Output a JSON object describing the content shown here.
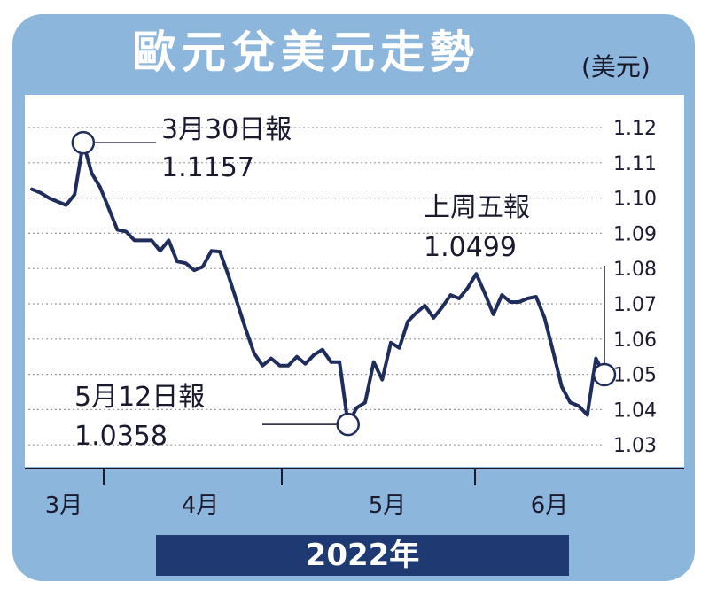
{
  "chart_data": {
    "type": "line",
    "title": "歐元兌美元走勢",
    "unit": "(美元)",
    "year_label": "2022年",
    "ylim": [
      1.025,
      1.13
    ],
    "yticks": [
      "1.12",
      "1.11",
      "1.10",
      "1.09",
      "1.08",
      "1.07",
      "1.06",
      "1.05",
      "1.04",
      "1.03"
    ],
    "ytick_values": [
      1.12,
      1.11,
      1.1,
      1.09,
      1.08,
      1.07,
      1.06,
      1.05,
      1.04,
      1.03
    ],
    "months": [
      "3月",
      "4月",
      "5月",
      "6月"
    ],
    "grid": true,
    "colors": {
      "line": "#1f2d5c",
      "frame": "#8db6dc",
      "year_bar": "#1f3a73"
    },
    "series": [
      {
        "values": [
          1.1025,
          1.1015,
          1.1,
          1.099,
          1.098,
          1.101,
          1.1157,
          1.107,
          1.103,
          1.097,
          1.091,
          1.0905,
          1.088,
          1.088,
          1.088,
          1.085,
          1.088,
          1.082,
          1.0815,
          1.0795,
          1.0805,
          1.085,
          1.0848,
          1.078,
          1.0705,
          1.063,
          1.056,
          1.0525,
          1.0545,
          1.0525,
          1.0525,
          1.055,
          1.053,
          1.0555,
          1.057,
          1.0535,
          1.0535,
          1.0358,
          1.0405,
          1.042,
          1.0535,
          1.0485,
          1.059,
          1.0575,
          1.065,
          1.0675,
          1.0695,
          1.066,
          1.069,
          1.0725,
          1.0715,
          1.0745,
          1.0785,
          1.073,
          1.067,
          1.0725,
          1.0705,
          1.0705,
          1.0715,
          1.072,
          1.066,
          1.0565,
          1.0465,
          1.042,
          1.041,
          1.0385,
          1.0545,
          1.0499
        ]
      }
    ],
    "annotations": [
      {
        "label": "3月30日報",
        "value": "1.1157"
      },
      {
        "label": "5月12日報",
        "value": "1.0358"
      },
      {
        "label": "上周五報",
        "value": "1.0499"
      }
    ]
  }
}
